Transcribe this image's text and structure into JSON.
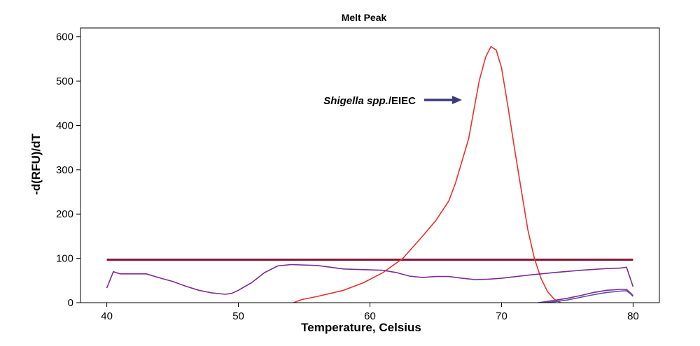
{
  "chart_data": {
    "type": "line",
    "title": "Melt Peak",
    "xlabel": "Temperature, Celsius",
    "ylabel": "-d(RFU)/dT",
    "xlim": [
      38,
      82
    ],
    "ylim": [
      0,
      620
    ],
    "xticks": [
      40,
      50,
      60,
      70,
      80
    ],
    "yticks": [
      0,
      100,
      200,
      300,
      400,
      500,
      600
    ],
    "grid": false,
    "threshold": {
      "value": 97,
      "color": "#8b1538"
    },
    "series": [
      {
        "color": "#e8312a",
        "points": [
          [
            54.2,
            0
          ],
          [
            54.8,
            7
          ],
          [
            56,
            14
          ],
          [
            58,
            28
          ],
          [
            59.5,
            45
          ],
          [
            61,
            68
          ],
          [
            62.5,
            100
          ],
          [
            64,
            150
          ],
          [
            65,
            185
          ],
          [
            66,
            230
          ],
          [
            66.5,
            270
          ],
          [
            67.5,
            370
          ],
          [
            68.3,
            500
          ],
          [
            68.8,
            555
          ],
          [
            69.2,
            578
          ],
          [
            69.6,
            570
          ],
          [
            70,
            530
          ],
          [
            70.5,
            440
          ],
          [
            71,
            345
          ],
          [
            71.5,
            255
          ],
          [
            72,
            165
          ],
          [
            72.5,
            100
          ],
          [
            73,
            55
          ],
          [
            73.5,
            25
          ],
          [
            74,
            8
          ],
          [
            74.5,
            0
          ]
        ]
      },
      {
        "color": "#7d2b8f",
        "points": [
          [
            40,
            33
          ],
          [
            40.5,
            70
          ],
          [
            41,
            65
          ],
          [
            42,
            65
          ],
          [
            43,
            65
          ],
          [
            44,
            56
          ],
          [
            45,
            48
          ],
          [
            46,
            37
          ],
          [
            47,
            28
          ],
          [
            48,
            22
          ],
          [
            49,
            19
          ],
          [
            49.5,
            21
          ],
          [
            50,
            28
          ],
          [
            51,
            45
          ],
          [
            52,
            68
          ],
          [
            53,
            83
          ],
          [
            54,
            86
          ],
          [
            56,
            84
          ],
          [
            58,
            76
          ],
          [
            60,
            74
          ],
          [
            61,
            73
          ],
          [
            62,
            68
          ],
          [
            63,
            60
          ],
          [
            64,
            57
          ],
          [
            65,
            59
          ],
          [
            66,
            59
          ],
          [
            67,
            55
          ],
          [
            68,
            52
          ],
          [
            69,
            53
          ],
          [
            70,
            55
          ],
          [
            72,
            62
          ],
          [
            74,
            68
          ],
          [
            76,
            73
          ],
          [
            78,
            77
          ],
          [
            79,
            78
          ],
          [
            79.5,
            80
          ],
          [
            80,
            36
          ]
        ]
      },
      {
        "color": "#7d2b8f",
        "points": [
          [
            72.8,
            0
          ],
          [
            74,
            5
          ],
          [
            75,
            10
          ],
          [
            76,
            16
          ],
          [
            77,
            23
          ],
          [
            78,
            28
          ],
          [
            79,
            30
          ],
          [
            79.5,
            30
          ],
          [
            79.8,
            22
          ],
          [
            80,
            16
          ]
        ]
      },
      {
        "color": "#5a4fa8",
        "points": [
          [
            72.8,
            0
          ],
          [
            74,
            2
          ],
          [
            75,
            6
          ],
          [
            76,
            12
          ],
          [
            77,
            18
          ],
          [
            78,
            23
          ],
          [
            79,
            26
          ],
          [
            79.5,
            27
          ],
          [
            79.8,
            20
          ],
          [
            80,
            14
          ]
        ]
      }
    ],
    "annotation": {
      "text_italic": "Shigella spp.",
      "text_rest": "/EIEC",
      "arrow_color": "#3b3b7a"
    }
  }
}
